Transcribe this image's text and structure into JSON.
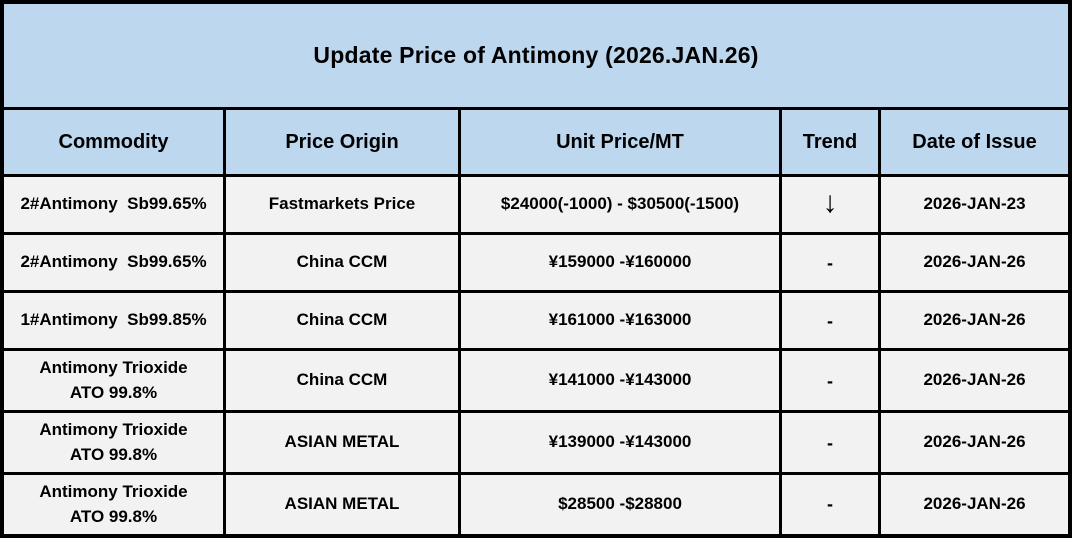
{
  "title": "Update Price of Antimony (2026.JAN.26)",
  "colors": {
    "title_header_bg": "#BDD7EE",
    "row_bg": "#F2F2F2",
    "border": "#000000",
    "text": "#000000"
  },
  "table": {
    "columns": [
      {
        "label": "Commodity"
      },
      {
        "label": "Price Origin"
      },
      {
        "label": "Unit Price/MT"
      },
      {
        "label": "Trend"
      },
      {
        "label": "Date of Issue"
      }
    ],
    "rows": [
      {
        "commodity": "2#Antimony  Sb99.65%",
        "origin": "Fastmarkets Price",
        "price": "$24000(-1000) - $30500(-1500)",
        "trend": "↓",
        "date": "2026-JAN-23"
      },
      {
        "commodity": "2#Antimony  Sb99.65%",
        "origin": "China CCM",
        "price": "¥159000 -¥160000",
        "trend": "-",
        "date": "2026-JAN-26"
      },
      {
        "commodity": "1#Antimony  Sb99.85%",
        "origin": "China CCM",
        "price": "¥161000 -¥163000",
        "trend": "-",
        "date": "2026-JAN-26"
      },
      {
        "commodity": "Antimony Trioxide\nATO 99.8%",
        "origin": "China CCM",
        "price": "¥141000 -¥143000",
        "trend": "-",
        "date": "2026-JAN-26"
      },
      {
        "commodity": "Antimony Trioxide\nATO 99.8%",
        "origin": "ASIAN METAL",
        "price": "¥139000 -¥143000",
        "trend": "-",
        "date": "2026-JAN-26"
      },
      {
        "commodity": "Antimony Trioxide\nATO 99.8%",
        "origin": "ASIAN METAL",
        "price": "$28500 -$28800",
        "trend": "-",
        "date": "2026-JAN-26"
      }
    ]
  }
}
